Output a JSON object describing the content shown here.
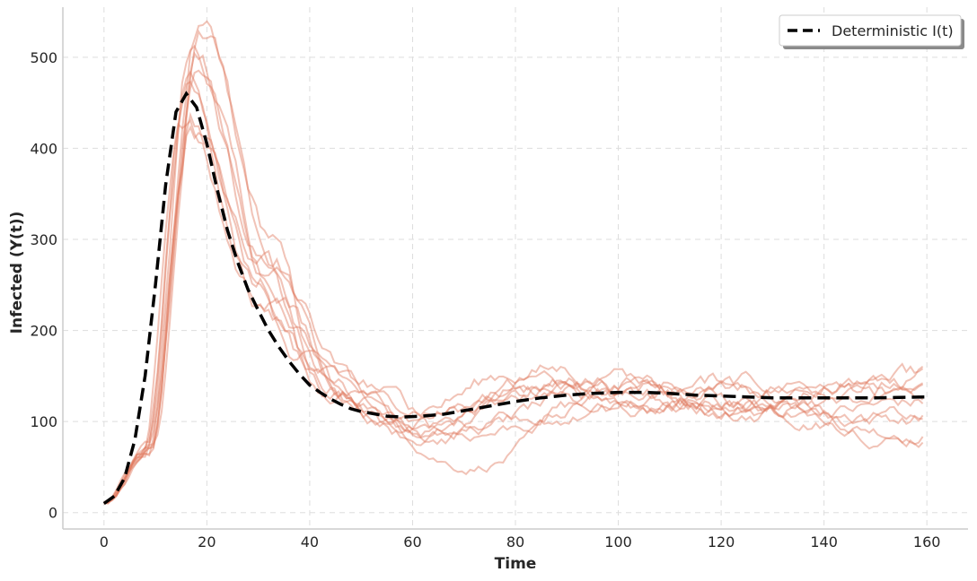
{
  "chart_data": {
    "type": "line",
    "title": "",
    "xlabel": "Time",
    "ylabel": "Infected (Y(t))",
    "xlim": [
      -8,
      168
    ],
    "ylim": [
      -18,
      555
    ],
    "xticks": [
      0,
      20,
      40,
      60,
      80,
      100,
      120,
      140,
      160
    ],
    "yticks": [
      0,
      100,
      200,
      300,
      400,
      500
    ],
    "grid": true,
    "legend_position": "top-right",
    "colors": {
      "stochastic": "#e07a5f",
      "deterministic": "#000000",
      "grid": "#dddddd",
      "axis": "#cccccc"
    },
    "deterministic": {
      "name": "Deterministic I(t)",
      "points": [
        [
          0,
          10
        ],
        [
          2,
          18
        ],
        [
          4,
          38
        ],
        [
          6,
          80
        ],
        [
          8,
          150
        ],
        [
          10,
          250
        ],
        [
          12,
          360
        ],
        [
          14,
          440
        ],
        [
          16,
          460
        ],
        [
          18,
          445
        ],
        [
          20,
          405
        ],
        [
          22,
          355
        ],
        [
          24,
          310
        ],
        [
          26,
          275
        ],
        [
          28,
          245
        ],
        [
          30,
          222
        ],
        [
          32,
          200
        ],
        [
          34,
          182
        ],
        [
          36,
          166
        ],
        [
          38,
          152
        ],
        [
          40,
          140
        ],
        [
          42,
          132
        ],
        [
          44,
          125
        ],
        [
          46,
          119
        ],
        [
          48,
          114
        ],
        [
          50,
          111
        ],
        [
          52,
          109
        ],
        [
          55,
          106
        ],
        [
          58,
          105
        ],
        [
          62,
          106
        ],
        [
          66,
          108
        ],
        [
          70,
          112
        ],
        [
          75,
          117
        ],
        [
          80,
          122
        ],
        [
          85,
          126
        ],
        [
          90,
          129
        ],
        [
          95,
          131
        ],
        [
          100,
          132
        ],
        [
          105,
          132
        ],
        [
          110,
          131
        ],
        [
          115,
          129
        ],
        [
          120,
          128
        ],
        [
          125,
          127
        ],
        [
          130,
          126
        ],
        [
          140,
          126
        ],
        [
          150,
          126
        ],
        [
          160,
          127
        ]
      ]
    },
    "stochastic_series": [
      {
        "peak_t": 17,
        "peak": 492,
        "trough_t": 58,
        "trough": 108,
        "mid": 125,
        "end": 145
      },
      {
        "peak_t": 18,
        "peak": 525,
        "trough_t": 60,
        "trough": 100,
        "mid": 140,
        "end": 97
      },
      {
        "peak_t": 16,
        "peak": 470,
        "trough_t": 62,
        "trough": 88,
        "mid": 125,
        "end": 140
      },
      {
        "peak_t": 19,
        "peak": 500,
        "trough_t": 64,
        "trough": 82,
        "mid": 150,
        "end": 92
      },
      {
        "peak_t": 15,
        "peak": 445,
        "trough_t": 70,
        "trough": 58,
        "mid": 105,
        "end": 118
      },
      {
        "peak_t": 17,
        "peak": 430,
        "trough_t": 60,
        "trough": 100,
        "mid": 130,
        "end": 108
      },
      {
        "peak_t": 18,
        "peak": 485,
        "trough_t": 66,
        "trough": 95,
        "mid": 120,
        "end": 125
      },
      {
        "peak_t": 16,
        "peak": 455,
        "trough_t": 56,
        "trough": 112,
        "mid": 160,
        "end": 100
      },
      {
        "peak_t": 17,
        "peak": 420,
        "trough_t": 62,
        "trough": 92,
        "mid": 135,
        "end": 150
      },
      {
        "peak_t": 18,
        "peak": 465,
        "trough_t": 68,
        "trough": 88,
        "mid": 115,
        "end": 132
      }
    ]
  }
}
